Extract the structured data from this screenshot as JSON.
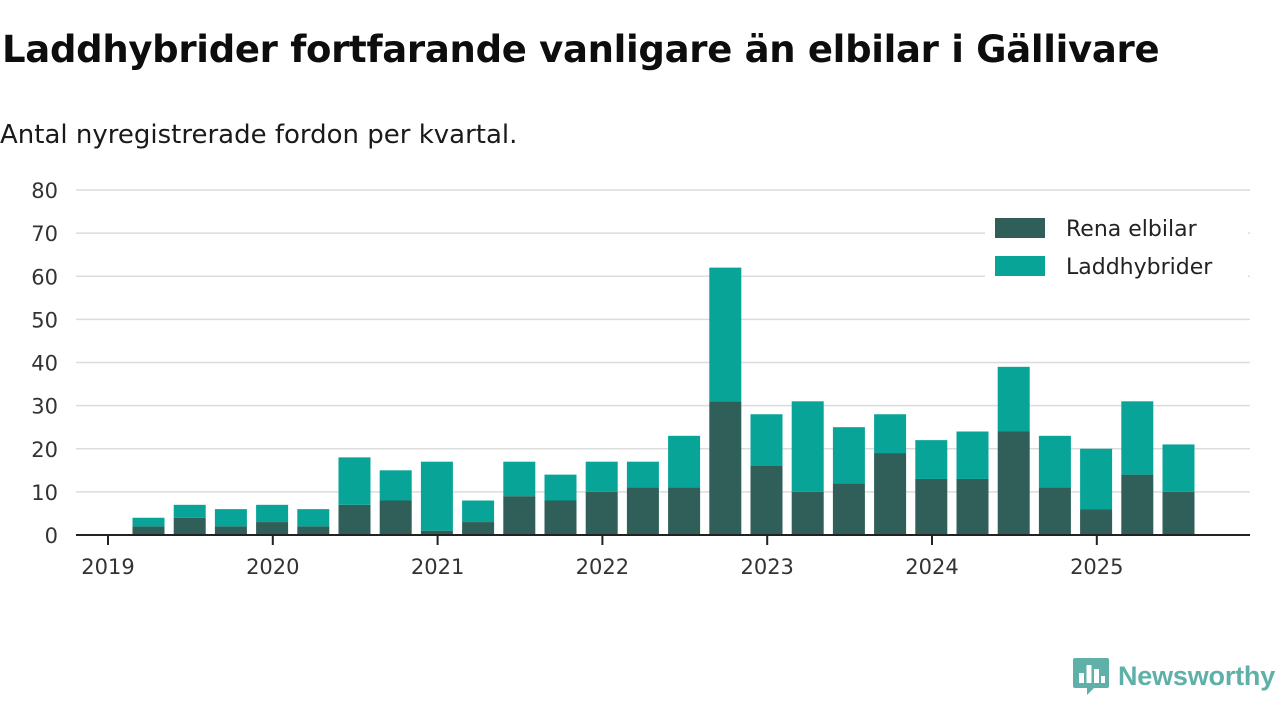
{
  "chart_data": {
    "type": "bar",
    "stacked": true,
    "title": "Laddhybrider fortfarande vanligare än elbilar i Gällivare",
    "subtitle": "Antal nyregistrerade fordon per kvartal.",
    "ylim": [
      0,
      80
    ],
    "yticks": [
      0,
      10,
      20,
      30,
      40,
      50,
      60,
      70,
      80
    ],
    "year_ticks": [
      "2019",
      "2020",
      "2021",
      "2022",
      "2023",
      "2024",
      "2025"
    ],
    "legend_position": "top-right",
    "categories": [
      "2019 Q2",
      "2019 Q3",
      "2019 Q4",
      "2020 Q1",
      "2020 Q2",
      "2020 Q3",
      "2020 Q4",
      "2021 Q1",
      "2021 Q2",
      "2021 Q3",
      "2021 Q4",
      "2022 Q1",
      "2022 Q2",
      "2022 Q3",
      "2022 Q4",
      "2023 Q1",
      "2023 Q2",
      "2023 Q3",
      "2023 Q4",
      "2024 Q1",
      "2024 Q2",
      "2024 Q3",
      "2024 Q4",
      "2025 Q1",
      "2025 Q2",
      "2025 Q3"
    ],
    "series": [
      {
        "name": "Rena elbilar",
        "color": "#2f5f58",
        "values": [
          2,
          4,
          2,
          3,
          2,
          7,
          8,
          1,
          3,
          9,
          8,
          10,
          11,
          11,
          31,
          16,
          10,
          12,
          19,
          13,
          13,
          24,
          11,
          6,
          14,
          10
        ]
      },
      {
        "name": "Laddhybrider",
        "color": "#07a497",
        "values": [
          2,
          3,
          4,
          4,
          4,
          11,
          7,
          16,
          5,
          8,
          6,
          7,
          6,
          12,
          31,
          12,
          21,
          13,
          9,
          9,
          11,
          15,
          12,
          14,
          17,
          11
        ]
      }
    ]
  },
  "brand": {
    "name": "Newsworthy",
    "logo_icon": "bar-chart-pin-icon",
    "color": "#5fb0a9"
  }
}
